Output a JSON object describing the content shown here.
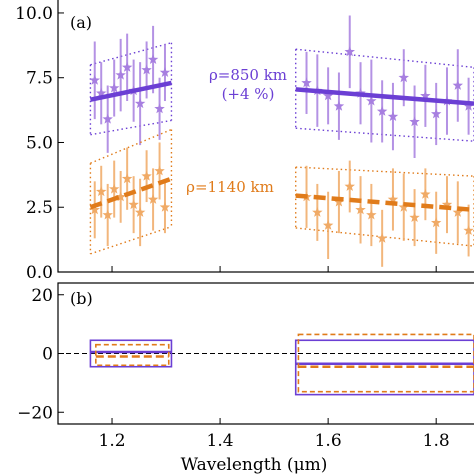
{
  "chart_data": [
    {
      "panel": "(a)",
      "type": "scatter",
      "xlim": [
        1.1,
        1.87
      ],
      "ylim": [
        0,
        10.5
      ],
      "yticks": [
        "0.0",
        "2.5",
        "5.0",
        "7.5",
        "10.0"
      ],
      "grid": false,
      "annotations": [
        {
          "text": "ρ=850 km",
          "color": "#6b3fd4"
        },
        {
          "text": "(+4 %)",
          "color": "#6b3fd4"
        },
        {
          "text": "ρ=1140 km",
          "color": "#e07b1a"
        }
      ],
      "series": [
        {
          "color": "#a77fe0",
          "fit_color": "#6b3fd4",
          "fit_style": "solid",
          "points": [
            {
              "x": 1.168,
              "y": 7.4,
              "err": 1.5
            },
            {
              "x": 1.18,
              "y": 6.9,
              "err": 1.2
            },
            {
              "x": 1.192,
              "y": 5.9,
              "err": 1.3
            },
            {
              "x": 1.204,
              "y": 7.1,
              "err": 1.1
            },
            {
              "x": 1.216,
              "y": 7.6,
              "err": 1.4
            },
            {
              "x": 1.228,
              "y": 7.9,
              "err": 1.3
            },
            {
              "x": 1.24,
              "y": 7.0,
              "err": 1.2
            },
            {
              "x": 1.252,
              "y": 6.5,
              "err": 1.6
            },
            {
              "x": 1.264,
              "y": 7.8,
              "err": 1.1
            },
            {
              "x": 1.276,
              "y": 8.2,
              "err": 1.3
            },
            {
              "x": 1.288,
              "y": 6.3,
              "err": 1.2
            },
            {
              "x": 1.298,
              "y": 7.7,
              "err": 1.1
            },
            {
              "x": 1.56,
              "y": 7.3,
              "err": 1.2
            },
            {
              "x": 1.58,
              "y": 7.0,
              "err": 1.4
            },
            {
              "x": 1.6,
              "y": 6.8,
              "err": 1.1
            },
            {
              "x": 1.62,
              "y": 6.4,
              "err": 1.3
            },
            {
              "x": 1.64,
              "y": 8.5,
              "err": 1.4
            },
            {
              "x": 1.66,
              "y": 6.9,
              "err": 1.2
            },
            {
              "x": 1.68,
              "y": 6.6,
              "err": 1.6
            },
            {
              "x": 1.7,
              "y": 6.2,
              "err": 1.2
            },
            {
              "x": 1.72,
              "y": 6.0,
              "err": 1.3
            },
            {
              "x": 1.74,
              "y": 7.5,
              "err": 1.1
            },
            {
              "x": 1.76,
              "y": 5.8,
              "err": 1.4
            },
            {
              "x": 1.78,
              "y": 6.8,
              "err": 1.2
            },
            {
              "x": 1.8,
              "y": 6.1,
              "err": 1.2
            },
            {
              "x": 1.82,
              "y": 6.6,
              "err": 1.3
            },
            {
              "x": 1.84,
              "y": 7.2,
              "err": 1.4
            },
            {
              "x": 1.86,
              "y": 6.4,
              "err": 1.1
            }
          ],
          "fits": [
            {
              "x": [
                1.16,
                1.31
              ],
              "y": [
                6.65,
                7.3
              ]
            },
            {
              "x": [
                1.54,
                1.87
              ],
              "y": [
                7.05,
                6.5
              ]
            }
          ],
          "bands": [
            {
              "x": [
                1.16,
                1.31
              ],
              "upper": [
                8.0,
                8.85
              ],
              "lower": [
                5.3,
                5.85
              ]
            },
            {
              "x": [
                1.54,
                1.87
              ],
              "upper": [
                8.6,
                7.9
              ],
              "lower": [
                5.55,
                5.05
              ]
            }
          ]
        },
        {
          "color": "#f0aa66",
          "fit_color": "#e07b1a",
          "fit_style": "dashed",
          "points": [
            {
              "x": 1.168,
              "y": 2.4,
              "err": 1.1
            },
            {
              "x": 1.18,
              "y": 3.1,
              "err": 1.0
            },
            {
              "x": 1.192,
              "y": 2.2,
              "err": 1.2
            },
            {
              "x": 1.204,
              "y": 3.2,
              "err": 1.1
            },
            {
              "x": 1.216,
              "y": 2.9,
              "err": 1.0
            },
            {
              "x": 1.228,
              "y": 3.6,
              "err": 1.2
            },
            {
              "x": 1.24,
              "y": 2.6,
              "err": 1.1
            },
            {
              "x": 1.252,
              "y": 2.3,
              "err": 1.3
            },
            {
              "x": 1.264,
              "y": 3.7,
              "err": 1.0
            },
            {
              "x": 1.276,
              "y": 2.8,
              "err": 1.2
            },
            {
              "x": 1.288,
              "y": 3.9,
              "err": 1.1
            },
            {
              "x": 1.298,
              "y": 2.5,
              "err": 1.0
            },
            {
              "x": 1.56,
              "y": 2.9,
              "err": 1.2
            },
            {
              "x": 1.58,
              "y": 2.3,
              "err": 1.1
            },
            {
              "x": 1.6,
              "y": 1.8,
              "err": 1.3
            },
            {
              "x": 1.62,
              "y": 2.7,
              "err": 1.2
            },
            {
              "x": 1.64,
              "y": 3.3,
              "err": 1.0
            },
            {
              "x": 1.66,
              "y": 2.4,
              "err": 1.3
            },
            {
              "x": 1.68,
              "y": 2.2,
              "err": 1.2
            },
            {
              "x": 1.7,
              "y": 1.3,
              "err": 1.1
            },
            {
              "x": 1.72,
              "y": 2.8,
              "err": 1.2
            },
            {
              "x": 1.74,
              "y": 2.5,
              "err": 1.3
            },
            {
              "x": 1.76,
              "y": 2.1,
              "err": 1.1
            },
            {
              "x": 1.78,
              "y": 3.0,
              "err": 1.0
            },
            {
              "x": 1.8,
              "y": 1.9,
              "err": 1.2
            },
            {
              "x": 1.82,
              "y": 2.6,
              "err": 1.1
            },
            {
              "x": 1.84,
              "y": 2.3,
              "err": 1.2
            },
            {
              "x": 1.86,
              "y": 1.6,
              "err": 1.0
            }
          ],
          "fits": [
            {
              "x": [
                1.16,
                1.31
              ],
              "y": [
                2.5,
                3.6
              ]
            },
            {
              "x": [
                1.54,
                1.87
              ],
              "y": [
                2.95,
                2.4
              ]
            }
          ],
          "bands": [
            {
              "x": [
                1.16,
                1.31
              ],
              "upper": [
                4.2,
                5.5
              ],
              "lower": [
                0.7,
                1.75
              ]
            },
            {
              "x": [
                1.54,
                1.87
              ],
              "upper": [
                4.05,
                3.7
              ],
              "lower": [
                1.7,
                1.0
              ]
            }
          ]
        }
      ]
    },
    {
      "panel": "(b)",
      "type": "area",
      "xlim": [
        1.1,
        1.87
      ],
      "ylim": [
        -24,
        24
      ],
      "yticks": [
        "−20",
        "0",
        "20"
      ],
      "xticks": [
        "1.2",
        "1.4",
        "1.6",
        "1.8"
      ],
      "xlabel": "Wavelength (μm)",
      "grid": false,
      "zero_line": true,
      "series": [
        {
          "color": "#6b3fd4",
          "style": "solid",
          "boxes": [
            {
              "x": [
                1.16,
                1.31
              ],
              "y": [
                -4.5,
                4.5
              ],
              "line": 0.5
            },
            {
              "x": [
                1.54,
                1.87
              ],
              "y": [
                -14.0,
                4.5
              ],
              "line": -3.5
            }
          ]
        },
        {
          "color": "#e07b1a",
          "style": "dashed",
          "boxes": [
            {
              "x": [
                1.17,
                1.305
              ],
              "y": [
                -4.0,
                3.0
              ],
              "line": -1.0
            },
            {
              "x": [
                1.545,
                1.87
              ],
              "y": [
                -13.0,
                6.5
              ],
              "line": -4.5
            }
          ]
        }
      ]
    }
  ]
}
